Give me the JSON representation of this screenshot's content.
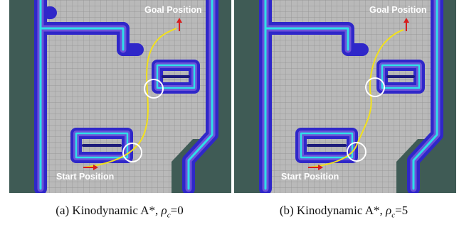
{
  "panels": [
    {
      "id": "a",
      "goal_label": "Goal Position",
      "start_label": "Start Position",
      "caption": {
        "prefix": "(a)  Kinodynamic A*,",
        "symbol": "ρ",
        "subscript": "c",
        "value": "=0"
      }
    },
    {
      "id": "b",
      "goal_label": "Goal Position",
      "start_label": "Start Position",
      "caption": {
        "prefix": "(b)  Kinodynamic A*,",
        "symbol": "ρ",
        "subscript": "c",
        "value": "=5"
      }
    }
  ],
  "colors": {
    "free_space": "#b9b9b9",
    "grid": "#8f8f8f",
    "occupied": "#3f5b55",
    "inflation_outer": "#2f27c9",
    "inflation_mid": "#6c52d8",
    "wall": "#2fe0e8",
    "path": "#f2e11c",
    "arrow": "#d71e1e",
    "circle": "#ffffff"
  }
}
